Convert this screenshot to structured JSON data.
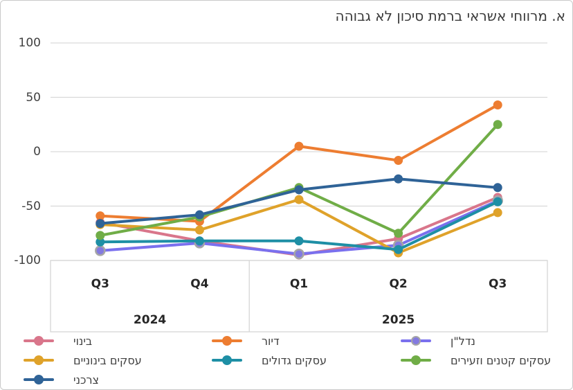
{
  "chart_data": {
    "type": "line",
    "title": "א. מרווחי אשראי ברמת סיכון לא גבוהה",
    "categories": [
      "Q3",
      "Q4",
      "Q1",
      "Q2",
      "Q3"
    ],
    "x_groups": [
      {
        "label": "2024",
        "count": 2
      },
      {
        "label": "2025",
        "count": 3
      }
    ],
    "ylim": [
      -100,
      100
    ],
    "yticks": [
      100,
      50,
      0,
      -50,
      -100
    ],
    "grid": "horizontal",
    "legend_position": "bottom",
    "series": [
      {
        "id": "binui",
        "name": "בינוי",
        "color": "#d9768b",
        "values": [
          -65,
          -82,
          -95,
          -80,
          -42
        ]
      },
      {
        "id": "diyur",
        "name": "דיור",
        "color": "#ed7d31",
        "values": [
          -59,
          -64,
          5,
          -8,
          43
        ]
      },
      {
        "id": "nadlan",
        "name": "נדל\"ן",
        "color": "#7a70ee",
        "marker_fill": "#837ae0",
        "marker_stroke": "#a6a6a6",
        "values": [
          -91,
          -84,
          -94,
          -86,
          -45
        ]
      },
      {
        "id": "medium-businesses",
        "name": "עסקים בינוניים",
        "color": "#dfa22a",
        "values": [
          -67,
          -72,
          -44,
          -93,
          -56
        ]
      },
      {
        "id": "large-businesses",
        "name": "עסקים גדולים",
        "color": "#1e8fa5",
        "values": [
          -83,
          -82,
          -82,
          -90,
          -46
        ]
      },
      {
        "id": "small-businesses",
        "name": "עסקים קטנים וזעירים",
        "color": "#70ad47",
        "values": [
          -77,
          -60,
          -33,
          -75,
          25
        ]
      },
      {
        "id": "consumer",
        "name": "צרכני",
        "color": "#2f6397",
        "values": [
          -66,
          -58,
          -35,
          -25,
          -33
        ]
      }
    ],
    "style": {
      "grid_color": "#d9d9d9",
      "axis_box_color": "#d6d6d6",
      "line_width": 4,
      "marker_radius": 6.5
    }
  }
}
